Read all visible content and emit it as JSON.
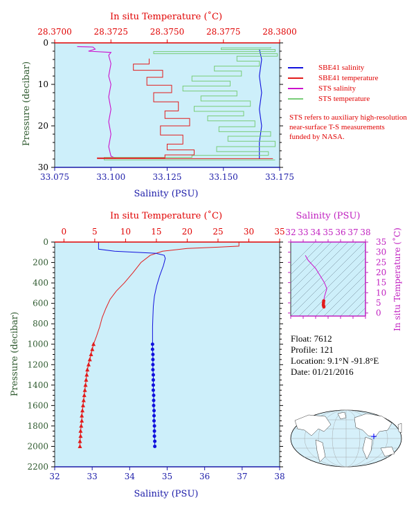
{
  "colors": {
    "plot_bg": "#cdeffa",
    "sbe41_salinity": "#1010dd",
    "sbe41_temperature": "#e21b1b",
    "sts_salinity": "#cc11cc",
    "sts_temperature": "#77cc77",
    "temp_axis": "#e00000",
    "sal_axis": "#1a1aa8",
    "pressure_axis": "#2f5a2f",
    "inset_axis": "#c020c0"
  },
  "legend": [
    {
      "label": "SBE41 salinity",
      "color": "#1010dd"
    },
    {
      "label": "SBE41 temperature",
      "color": "#e21b1b"
    },
    {
      "label": "STS salinity",
      "color": "#cc11cc"
    },
    {
      "label": "STS temperature",
      "color": "#77cc77"
    }
  ],
  "note": "STS refers to auxiliary high-resolution near-surface T-S measurements funded by NASA.",
  "info": {
    "float": "Float:  7612",
    "profile": "Profile:  121",
    "location": "Location:  9.1°N  -91.8°E",
    "date": "Date:  01/21/2016"
  },
  "chart_data": [
    {
      "id": "near-surface",
      "type": "line",
      "top_axis_label": "In situ Temperature (˚C)",
      "bottom_axis_label": "Salinity (PSU)",
      "ylabel": "Pressure (decibar)",
      "temp_ticks": [
        "28.3700",
        "28.3725",
        "28.3750",
        "28.3775",
        "28.3800"
      ],
      "temp_lim": [
        28.37,
        28.38
      ],
      "sal_ticks": [
        "33.075",
        "33.100",
        "33.125",
        "33.150",
        "33.175"
      ],
      "sal_lim": [
        33.075,
        33.175
      ],
      "pressure_ticks": [
        "0",
        "10",
        "20",
        "30"
      ],
      "pressure_lim": [
        0,
        30
      ],
      "series": [
        {
          "name": "STS salinity",
          "axis": "salinity",
          "points": [
            [
              33.085,
              0.9
            ],
            [
              33.092,
              1.0
            ],
            [
              33.093,
              1.5
            ],
            [
              33.09,
              2.0
            ],
            [
              33.1,
              2.3
            ],
            [
              33.099,
              3
            ],
            [
              33.1,
              5
            ],
            [
              33.099,
              8
            ],
            [
              33.1,
              10
            ],
            [
              33.099,
              13
            ],
            [
              33.1,
              16
            ],
            [
              33.099,
              19
            ],
            [
              33.1,
              22
            ],
            [
              33.099,
              25
            ],
            [
              33.1,
              27.3
            ],
            [
              33.102,
              27.8
            ]
          ]
        },
        {
          "name": "SBE41 salinity",
          "axis": "salinity",
          "points": [
            [
              33.166,
              1.5
            ],
            [
              33.167,
              4
            ],
            [
              33.166,
              8
            ],
            [
              33.167,
              12
            ],
            [
              33.166,
              16
            ],
            [
              33.167,
              20
            ],
            [
              33.166,
              24
            ],
            [
              33.166,
              28
            ]
          ]
        },
        {
          "name": "STS temperature",
          "axis": "temperature",
          "points": [
            [
              28.3796,
              1.0
            ],
            [
              28.3774,
              1.2
            ],
            [
              28.3798,
              1.6
            ],
            [
              28.3744,
              2.1
            ],
            [
              28.3799,
              2.6
            ],
            [
              28.3781,
              3.2
            ],
            [
              28.3791,
              4.4
            ],
            [
              28.3771,
              5.6
            ],
            [
              28.3783,
              6.8
            ],
            [
              28.3761,
              8.0
            ],
            [
              28.3778,
              9.2
            ],
            [
              28.3757,
              10.4
            ],
            [
              28.3781,
              11.6
            ],
            [
              28.3765,
              12.8
            ],
            [
              28.3787,
              14.0
            ],
            [
              28.3762,
              15.3
            ],
            [
              28.3784,
              16.5
            ],
            [
              28.3768,
              17.6
            ],
            [
              28.3789,
              18.8
            ],
            [
              28.3773,
              20.2
            ],
            [
              28.3796,
              21.4
            ],
            [
              28.3777,
              22.5
            ],
            [
              28.3798,
              23.7
            ],
            [
              28.3772,
              25.0
            ],
            [
              28.3795,
              26.2
            ],
            [
              28.3761,
              27.1
            ],
            [
              28.3722,
              27.6
            ],
            [
              28.3798,
              28.2
            ]
          ]
        },
        {
          "name": "SBE41 temperature",
          "axis": "temperature",
          "points": [
            [
              28.3742,
              3.8
            ],
            [
              28.3735,
              5.1
            ],
            [
              28.3748,
              6.6
            ],
            [
              28.3741,
              8.3
            ],
            [
              28.3752,
              10.2
            ],
            [
              28.3744,
              12.0
            ],
            [
              28.3755,
              14.2
            ],
            [
              28.3749,
              16.4
            ],
            [
              28.376,
              18.2
            ],
            [
              28.3747,
              20.0
            ],
            [
              28.3757,
              22.2
            ],
            [
              28.375,
              24.4
            ],
            [
              28.3762,
              25.8
            ],
            [
              28.3749,
              27.0
            ],
            [
              28.3719,
              27.7
            ],
            [
              28.3797,
              27.9
            ]
          ]
        }
      ]
    },
    {
      "id": "full-profile",
      "type": "line",
      "top_axis_label": "In situ Temperature (˚C)",
      "bottom_axis_label": "Salinity (PSU)",
      "ylabel": "Pressure (decibar)",
      "temp_ticks": [
        "0",
        "5",
        "10",
        "15",
        "20",
        "25",
        "30",
        "35"
      ],
      "temp_lim": [
        -1.5,
        35
      ],
      "sal_ticks": [
        "32",
        "33",
        "34",
        "35",
        "36",
        "37",
        "38"
      ],
      "sal_lim": [
        32,
        38
      ],
      "pressure_ticks": [
        "0",
        "200",
        "400",
        "600",
        "800",
        "1000",
        "1200",
        "1400",
        "1600",
        "1800",
        "2000",
        "2200"
      ],
      "pressure_lim": [
        0,
        2200
      ],
      "series": [
        {
          "name": "SBE41 temperature",
          "axis": "temperature",
          "points": [
            [
              28.4,
              0
            ],
            [
              28.4,
              40
            ],
            [
              25,
              50
            ],
            [
              20,
              62
            ],
            [
              16,
              90
            ],
            [
              14,
              130
            ],
            [
              12.5,
              200
            ],
            [
              11.2,
              300
            ],
            [
              9.8,
              400
            ],
            [
              8.5,
              480
            ],
            [
              7.5,
              560
            ],
            [
              6.8,
              650
            ],
            [
              6.2,
              740
            ],
            [
              5.8,
              830
            ],
            [
              5.3,
              920
            ],
            [
              4.8,
              1000
            ]
          ],
          "markers": [
            [
              4.8,
              1000
            ],
            [
              4.6,
              1050
            ],
            [
              4.4,
              1100
            ],
            [
              4.2,
              1150
            ],
            [
              4.0,
              1200
            ],
            [
              3.8,
              1250
            ],
            [
              3.7,
              1300
            ],
            [
              3.6,
              1350
            ],
            [
              3.5,
              1400
            ],
            [
              3.4,
              1450
            ],
            [
              3.3,
              1500
            ],
            [
              3.2,
              1550
            ],
            [
              3.1,
              1600
            ],
            [
              3.0,
              1650
            ],
            [
              2.9,
              1700
            ],
            [
              2.9,
              1750
            ],
            [
              2.8,
              1800
            ],
            [
              2.7,
              1850
            ],
            [
              2.7,
              1900
            ],
            [
              2.6,
              1950
            ],
            [
              2.6,
              2000
            ]
          ]
        },
        {
          "name": "SBE41 salinity",
          "axis": "salinity",
          "points": [
            [
              33.17,
              0
            ],
            [
              33.17,
              70
            ],
            [
              33.6,
              90
            ],
            [
              34.7,
              110
            ],
            [
              34.92,
              130
            ],
            [
              34.95,
              160
            ],
            [
              34.9,
              230
            ],
            [
              34.8,
              330
            ],
            [
              34.72,
              430
            ],
            [
              34.66,
              530
            ],
            [
              34.63,
              630
            ],
            [
              34.62,
              730
            ],
            [
              34.61,
              830
            ],
            [
              34.61,
              930
            ],
            [
              34.61,
              1000
            ]
          ],
          "markers": [
            [
              34.61,
              1000
            ],
            [
              34.61,
              1050
            ],
            [
              34.62,
              1100
            ],
            [
              34.62,
              1150
            ],
            [
              34.62,
              1200
            ],
            [
              34.62,
              1250
            ],
            [
              34.63,
              1300
            ],
            [
              34.63,
              1350
            ],
            [
              34.63,
              1400
            ],
            [
              34.63,
              1450
            ],
            [
              34.64,
              1500
            ],
            [
              34.64,
              1550
            ],
            [
              34.64,
              1600
            ],
            [
              34.65,
              1650
            ],
            [
              34.65,
              1700
            ],
            [
              34.65,
              1750
            ],
            [
              34.66,
              1800
            ],
            [
              34.66,
              1850
            ],
            [
              34.66,
              1900
            ],
            [
              34.67,
              1950
            ],
            [
              34.67,
              2000
            ]
          ]
        }
      ]
    },
    {
      "id": "ts-inset",
      "type": "scatter",
      "top_axis_label": "Salinity (PSU)",
      "right_axis_label": "In situ Temperature (˚C)",
      "sal_ticks": [
        "32",
        "33",
        "34",
        "35",
        "36",
        "37",
        "38"
      ],
      "sal_lim": [
        32,
        38
      ],
      "temp_ticks": [
        "0",
        "5",
        "10",
        "15",
        "20",
        "25",
        "30",
        "35"
      ],
      "temp_lim": [
        -1.5,
        35
      ],
      "points": [
        [
          33.17,
          28.4
        ],
        [
          33.4,
          26
        ],
        [
          34.0,
          22
        ],
        [
          34.4,
          18
        ],
        [
          34.7,
          15
        ],
        [
          34.9,
          12
        ],
        [
          34.8,
          10
        ],
        [
          34.7,
          8
        ],
        [
          34.65,
          6
        ],
        [
          34.63,
          5
        ],
        [
          34.62,
          4
        ],
        [
          34.64,
          3.5
        ],
        [
          34.66,
          3
        ]
      ]
    }
  ]
}
